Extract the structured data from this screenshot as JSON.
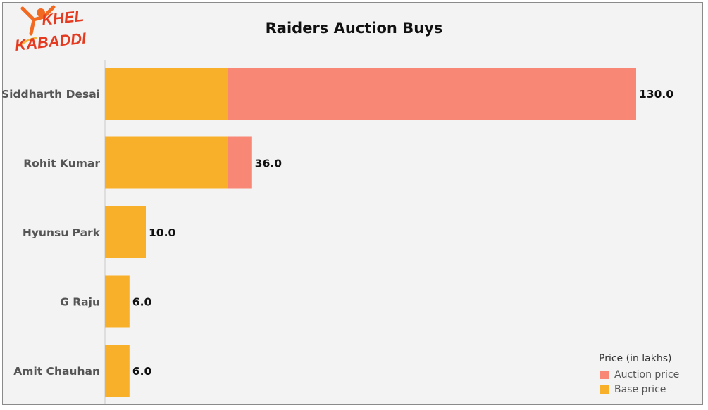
{
  "logo": {
    "line1": "KHEL",
    "line2": "KABADDI"
  },
  "chart_data": {
    "type": "bar",
    "orientation": "horizontal",
    "stacked": true,
    "title": "Raiders Auction Buys",
    "categories": [
      "Siddharth Desai",
      "Rohit Kumar",
      "Hyunsu Park",
      "G Raju",
      "Amit Chauhan"
    ],
    "series": [
      {
        "name": "Base price",
        "color": "#F8B02A",
        "values": [
          30,
          30,
          10,
          6,
          6
        ]
      },
      {
        "name": "Auction price",
        "color": "#F88775",
        "values": [
          100,
          6,
          0,
          0,
          0
        ]
      }
    ],
    "totals": [
      "130.0",
      "36.0",
      "10.0",
      "6.0",
      "6.0"
    ],
    "xlim": [
      0,
      130
    ],
    "legend": {
      "title": "Price (in lakhs)",
      "position": "bottom-right",
      "items": [
        {
          "name": "Auction price",
          "color": "#F88775"
        },
        {
          "name": "Base price",
          "color": "#F8B02A"
        }
      ]
    }
  }
}
